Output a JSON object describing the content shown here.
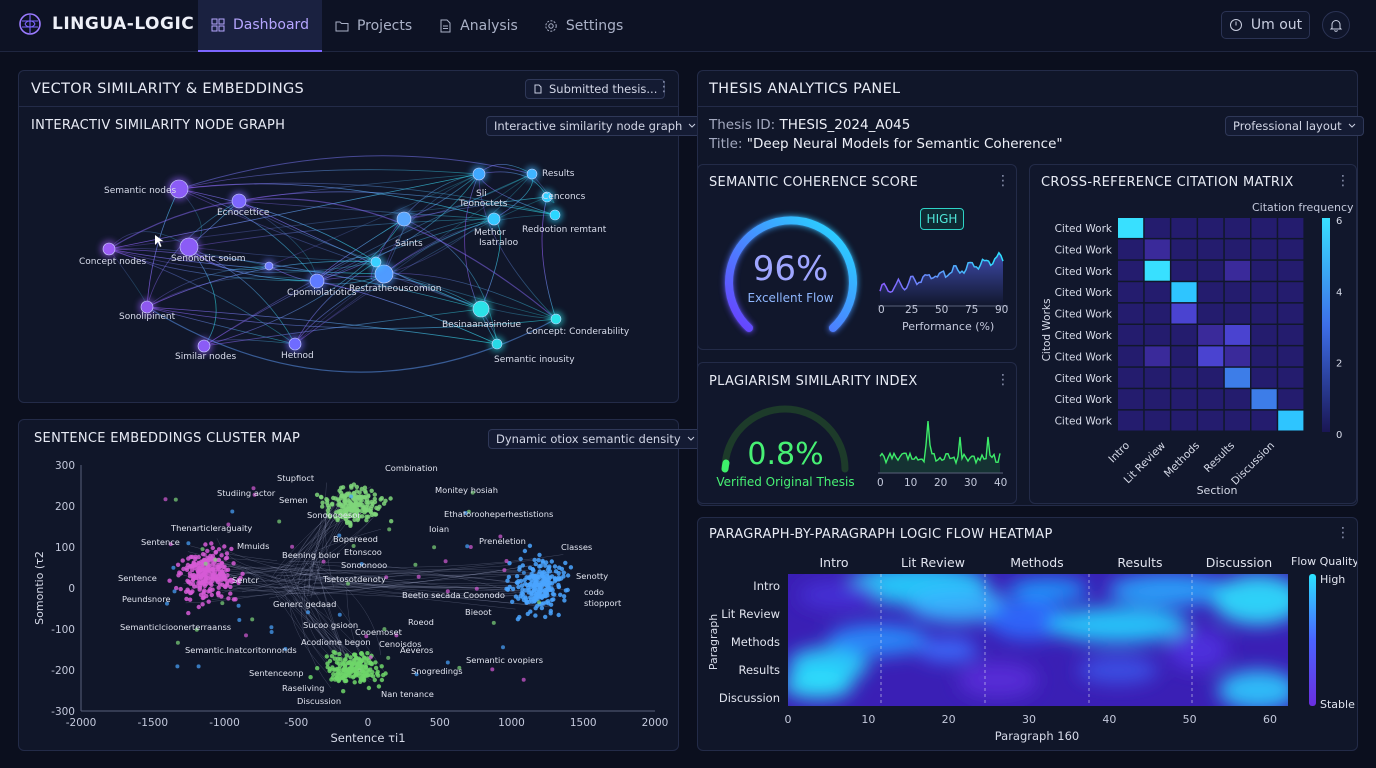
{
  "app": {
    "name": "LINGUA-LOGIC"
  },
  "nav": {
    "tabs": [
      {
        "label": "Dashboard",
        "icon": "grid-icon",
        "active": true
      },
      {
        "label": "Projects",
        "icon": "folder-icon"
      },
      {
        "label": "Analysis",
        "icon": "document-icon"
      },
      {
        "label": "Settings",
        "icon": "gear-icon"
      }
    ],
    "logout_label": "Um out"
  },
  "vector_panel": {
    "title": "VECTOR SIMILARITY & EMBEDDINGS",
    "button": "Submitted thesis...",
    "graph_title": "INTERACTIV SIMILARITY NODE GRAPH",
    "graph_select": "Interactive similarity node graph",
    "node_labels": [
      "Semantic nodes",
      "Ecnocettice",
      "Concept nodes",
      "Senonotic soiom",
      "Sonolipinent",
      "Similar nodes",
      "Hetnod",
      "Cpomiolatiotics",
      "Restratheouscomion",
      "Saints",
      "Sli",
      "Teonoctets",
      "Methor",
      "Isatraloo",
      "Results",
      "Cenconcs",
      "Redootion remtant",
      "Besinaanasinoiue",
      "Concept: Conderability",
      "Semantic inousity"
    ]
  },
  "cluster_panel": {
    "title": "SENTENCE EMBEDDINGS CLUSTER MAP",
    "select": "Dynamic otiox semantic density",
    "xlabel": "Sentence τi1",
    "ylabel": "Somontio (τ2",
    "x_ticks": [
      "-2000",
      "-1500",
      "-1000",
      "-500",
      "0",
      "500",
      "1000",
      "1500",
      "2000"
    ],
    "y_ticks": [
      "300",
      "200",
      "100",
      "0",
      "-100",
      "-200",
      "-300"
    ],
    "labels": [
      "Stupfioct",
      "Combination",
      "Studiing actor",
      "Semen",
      "Monitey hosiah",
      "Sonooooesor",
      "Ethatorooheperhestistions",
      "Thenarticleraguaity",
      "Ioian",
      "Sentence",
      "Mmuids",
      "Bopereeod",
      "Preneletion",
      "Classes",
      "Beening boior",
      "Etonscoo",
      "Sentence",
      "Sentcr",
      "Tsetosotdenoty",
      "Sonoonooo",
      "Senotty",
      "Peundsnore",
      "codo",
      "Beetio secada Cooonodo",
      "stiopport",
      "Generc gedaad",
      "Bieoot",
      "Semanticlcioonerterraanss",
      "Sucoo gsioon",
      "Roeod",
      "Cooemoset",
      "Semantic.Inatcoritonnonds",
      "Acodiome begon",
      "Cenoisdos",
      "Aeveros",
      "Semantic ovopiers",
      "Sentenceonp",
      "Snogredings",
      "Raseliving",
      "Nan tenance",
      "Discussion"
    ]
  },
  "thesis_panel": {
    "title": "THESIS ANALYTICS PANEL",
    "id_label": "Thesis  ID:",
    "id_value": "THESIS_2024_A045",
    "title_label": "Title:",
    "title_value": "\"Deep Neural Models for Semantic Coherence\"",
    "layout_select": "Professional layout"
  },
  "coherence": {
    "title": "SEMANTIC COHERENCE SCORE",
    "value_text": "96%",
    "value": 96,
    "caption": "Excellent Flow",
    "badge": "HIGH",
    "x_ticks": [
      "0",
      "25",
      "50",
      "75",
      "90"
    ],
    "xlabel": "Performance (%)"
  },
  "plagiarism": {
    "title": "PLAGIARISM SIMILARITY INDEX",
    "value_text": "0.8%",
    "value": 0.8,
    "caption": "Verified Original Thesis",
    "x_ticks": [
      "0",
      "10",
      "20",
      "30",
      "40"
    ]
  },
  "citation": {
    "title": "CROSS-REFERENCE CITATION MATRIX",
    "legend_title": "Citation frequency",
    "row_labels": [
      "Cited Work",
      "Cited Work",
      "Cited Work",
      "Cited Work",
      "Cited Work",
      "Cited Work",
      "Cited Work",
      "Cited Work",
      "Cited Work",
      "Cited Work"
    ],
    "col_labels": [
      "Intro",
      "Lit Review",
      "Methods",
      "Results",
      "Discussion"
    ],
    "ylabel": "Citod Works",
    "xlabel": "Section",
    "scale_ticks": [
      "6",
      "4",
      "2",
      "0"
    ]
  },
  "heatmap": {
    "title": "PARAGRAPH-BY-PARAGRAPH LOGIC FLOW HEATMAP",
    "col_labels": [
      "Intro",
      "Lit Review",
      "Methods",
      "Results",
      "Discussion"
    ],
    "row_labels": [
      "Intro",
      "Lit Review",
      "Methods",
      "Results",
      "Discussion"
    ],
    "legend_title": "Flow Quality",
    "legend_high": "High",
    "legend_low": "Stable",
    "x_ticks": [
      "0",
      "10",
      "20",
      "30",
      "40",
      "50",
      "60"
    ],
    "xlabel": "Paragraph 160",
    "ylabel": "Paragraph"
  }
}
